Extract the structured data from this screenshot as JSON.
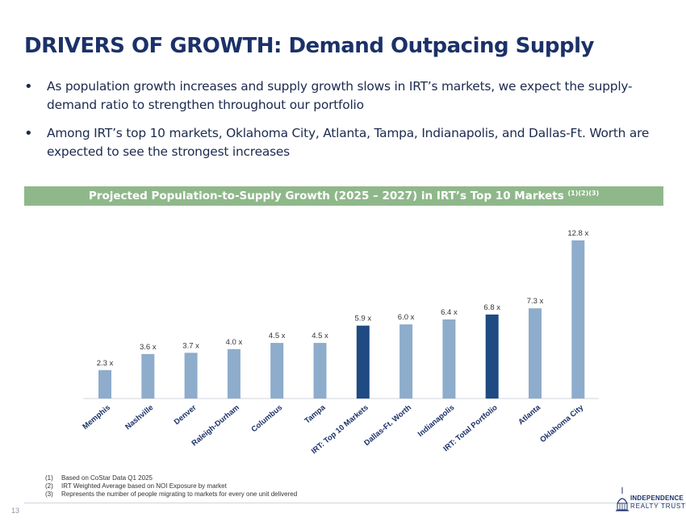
{
  "title": "DRIVERS OF GROWTH: Demand Outpacing Supply",
  "bullets": [
    "As population growth increases and supply growth slows in IRT’s markets, we expect the supply-demand ratio to strengthen throughout our portfolio",
    "Among IRT’s top 10 markets, Oklahoma City, Atlanta, Tampa, Indianapolis, and Dallas-Ft. Worth are expected to see the strongest increases"
  ],
  "bullet_symbol": "•",
  "banner": {
    "text": "Projected Population-to-Supply Growth (2025 – 2027) in IRT’s Top 10 Markets",
    "superscript": "(1)(2)(3)"
  },
  "chart_data": {
    "type": "bar",
    "title": "Projected Population-to-Supply Growth (2025 – 2027) in IRT’s Top 10 Markets",
    "categories": [
      "Memphis",
      "Nashville",
      "Denver",
      "Raleigh-Durham",
      "Columbus",
      "Tampa",
      "IRT: Top 10 Markets",
      "Dallas-Ft. Worth",
      "Indianapolis",
      "IRT: Total Portfolio",
      "Atlanta",
      "Oklahoma City"
    ],
    "values": [
      2.3,
      3.6,
      3.7,
      4.0,
      4.5,
      4.5,
      5.9,
      6.0,
      6.4,
      6.8,
      7.3,
      12.8
    ],
    "data_labels": [
      "2.3 x",
      "3.6 x",
      "3.7 x",
      "4.0 x",
      "4.5 x",
      "4.5 x",
      "5.9 x",
      "6.0 x",
      "6.4 x",
      "6.8 x",
      "7.3 x",
      "12.8 x"
    ],
    "highlight": [
      false,
      false,
      false,
      false,
      false,
      false,
      true,
      false,
      false,
      true,
      false,
      false
    ],
    "colors": {
      "default": "#8eaccb",
      "highlight": "#1f4b82",
      "axis": "#d0d6de"
    },
    "xlabel": "",
    "ylabel": "",
    "ylim": [
      0,
      13
    ],
    "grid": false,
    "legend": "none"
  },
  "footnotes": [
    {
      "num": "(1)",
      "text": "Based on CoStar Data Q1 2025"
    },
    {
      "num": "(2)",
      "text": "IRT Weighted Average based on NOI Exposure by market"
    },
    {
      "num": "(3)",
      "text": "Represents the number of people migrating to markets for every one unit delivered"
    }
  ],
  "page_number": "13",
  "logo": {
    "line1": "INDEPENDENCE",
    "line2": "REALTY TRUST",
    "icon": "building-dome-icon"
  },
  "colors": {
    "title": "#1b3168",
    "banner": "#8fb88a",
    "text": "#1b2a4e"
  }
}
